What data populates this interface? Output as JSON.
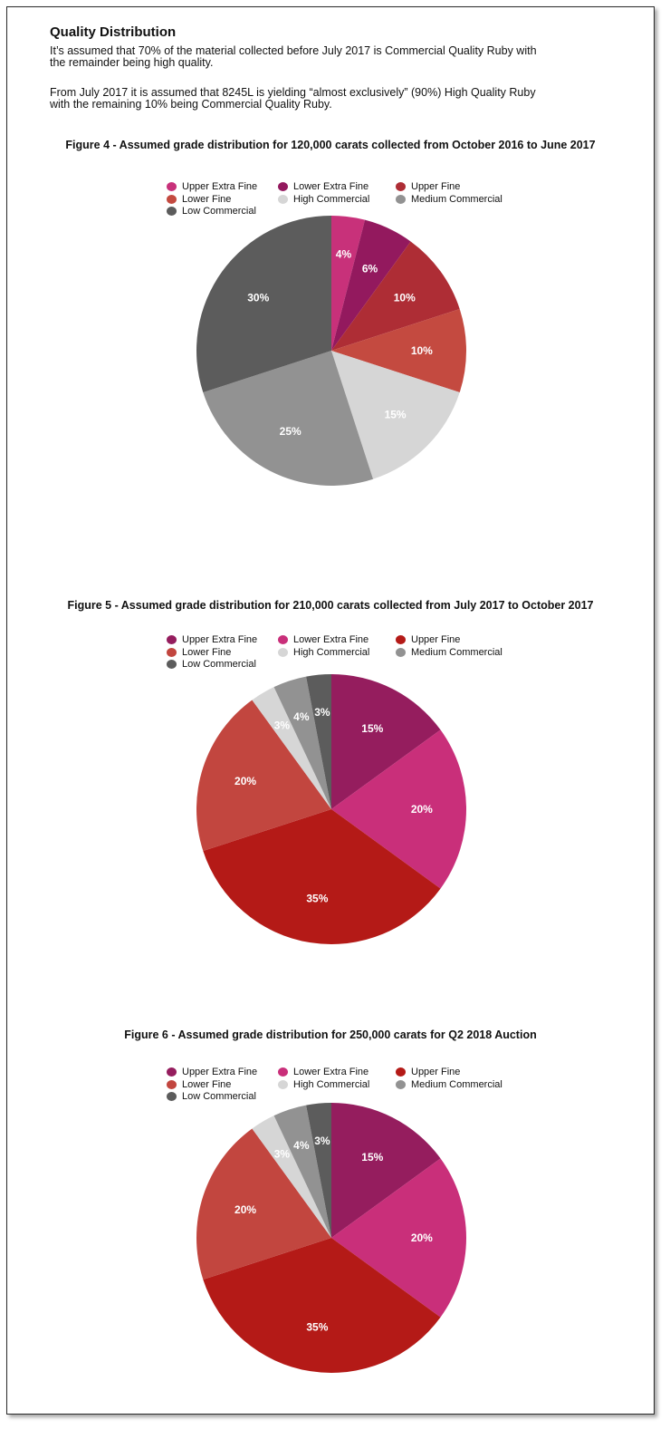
{
  "heading": "Quality Distribution",
  "paragraphs": [
    [
      "It’s assumed that 70% of the material collected before July 2017 is Commercial Quality Ruby with",
      "the remainder being high quality."
    ],
    [
      "From July 2017 it is assumed that 8245L is yielding “almost exclusively” (90%) High Quality Ruby",
      "with the remaining 10% being Commercial Quality Ruby."
    ]
  ],
  "chart_data": [
    {
      "type": "pie",
      "title": "Figure 4 - Assumed grade distribution for 120,000 carats collected from October 2016 to June 2017",
      "categories": [
        "Upper Extra Fine",
        "Lower Extra Fine",
        "Upper Fine",
        "Lower Fine",
        "High Commercial",
        "Medium Commercial",
        "Low Commercial"
      ],
      "values": [
        4,
        6,
        10,
        10,
        15,
        25,
        30
      ],
      "labels": [
        "4%",
        "6%",
        "10%",
        "10%",
        "15%",
        "25%",
        "30%"
      ],
      "colors": [
        "#c8317a",
        "#93195e",
        "#ae2d35",
        "#c44a40",
        "#d6d6d6",
        "#929292",
        "#5c5c5c"
      ],
      "legend_position": "top"
    },
    {
      "type": "pie",
      "title": "Figure 5 - Assumed grade distribution for 210,000 carats collected from July 2017 to October 2017",
      "categories": [
        "Upper Extra Fine",
        "Lower Extra Fine",
        "Upper Fine",
        "Lower Fine",
        "High Commercial",
        "Medium Commercial",
        "Low Commercial"
      ],
      "values": [
        15,
        20,
        35,
        20,
        3,
        4,
        3
      ],
      "labels": [
        "15%",
        "20%",
        "35%",
        "20%",
        "3%",
        "4%",
        "3%"
      ],
      "colors": [
        "#951d5e",
        "#c92f7a",
        "#b41a17",
        "#c2463f",
        "#d6d6d6",
        "#929292",
        "#5c5c5c"
      ],
      "legend_position": "top"
    },
    {
      "type": "pie",
      "title": "Figure 6 - Assumed grade distribution for 250,000 carats for Q2 2018 Auction",
      "categories": [
        "Upper Extra Fine",
        "Lower Extra Fine",
        "Upper Fine",
        "Lower Fine",
        "High Commercial",
        "Medium Commercial",
        "Low Commercial"
      ],
      "values": [
        15,
        20,
        35,
        20,
        3,
        4,
        3
      ],
      "labels": [
        "15%",
        "20%",
        "35%",
        "20%",
        "3%",
        "4%",
        "3%"
      ],
      "colors": [
        "#951d5e",
        "#c92f7a",
        "#b41a17",
        "#c2463f",
        "#d6d6d6",
        "#929292",
        "#5c5c5c"
      ],
      "legend_position": "top"
    }
  ]
}
